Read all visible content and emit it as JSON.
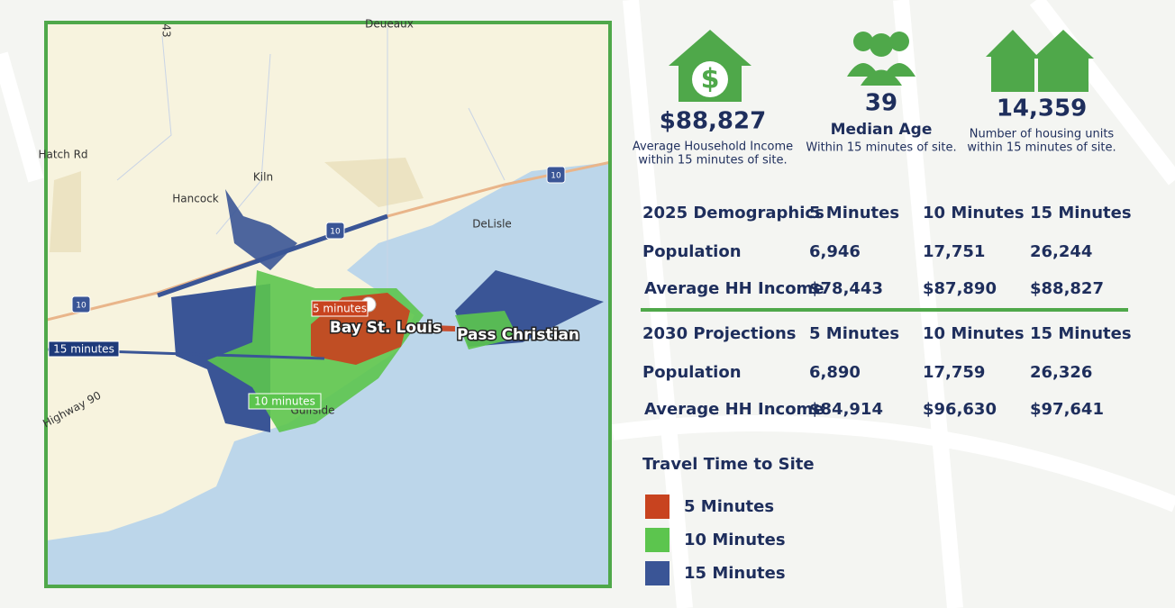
{
  "map": {
    "places": [
      "Deueaux",
      "Kiln",
      "Hancock",
      "DeLisle",
      "Gulfside",
      "Highway 90",
      "Hatch Rd",
      "43"
    ],
    "cities": [
      "Bay St. Louis",
      "Pass Christian"
    ],
    "travel_labels": [
      "5 minutes",
      "10 minutes",
      "15 minutes"
    ],
    "shields": [
      "10",
      "10",
      "10"
    ]
  },
  "stats": [
    {
      "value": "$88,827",
      "label": "Average Household Income",
      "sublabel": "within 15 minutes of site."
    },
    {
      "value": "39",
      "label": "Median Age",
      "sublabel": "Within 15 minutes of site."
    },
    {
      "value": "14,359",
      "label": "Number of housing units",
      "sublabel": "within 15 minutes of site."
    }
  ],
  "tables": [
    {
      "header": [
        "2025 Demographics",
        "5 Minutes",
        "10 Minutes",
        "15 Minutes"
      ],
      "rows": [
        [
          "Population",
          "6,946",
          "17,751",
          "26,244"
        ],
        [
          "Average HH Income",
          "$78,443",
          "$87,890",
          "$88,827"
        ]
      ]
    },
    {
      "header": [
        "2030 Projections",
        "5 Minutes",
        "10 Minutes",
        "15 Minutes"
      ],
      "rows": [
        [
          "Population",
          "6,890",
          "17,759",
          "26,326"
        ],
        [
          "Average HH Income",
          "$84,914",
          "$96,630",
          "$97,641"
        ]
      ]
    }
  ],
  "legend": {
    "title": "Travel Time to Site",
    "items": [
      {
        "label": "5 Minutes",
        "color": "#c8431f"
      },
      {
        "label": "10 Minutes",
        "color": "#5cc54e"
      },
      {
        "label": "15 Minutes",
        "color": "#3a5596"
      }
    ]
  }
}
